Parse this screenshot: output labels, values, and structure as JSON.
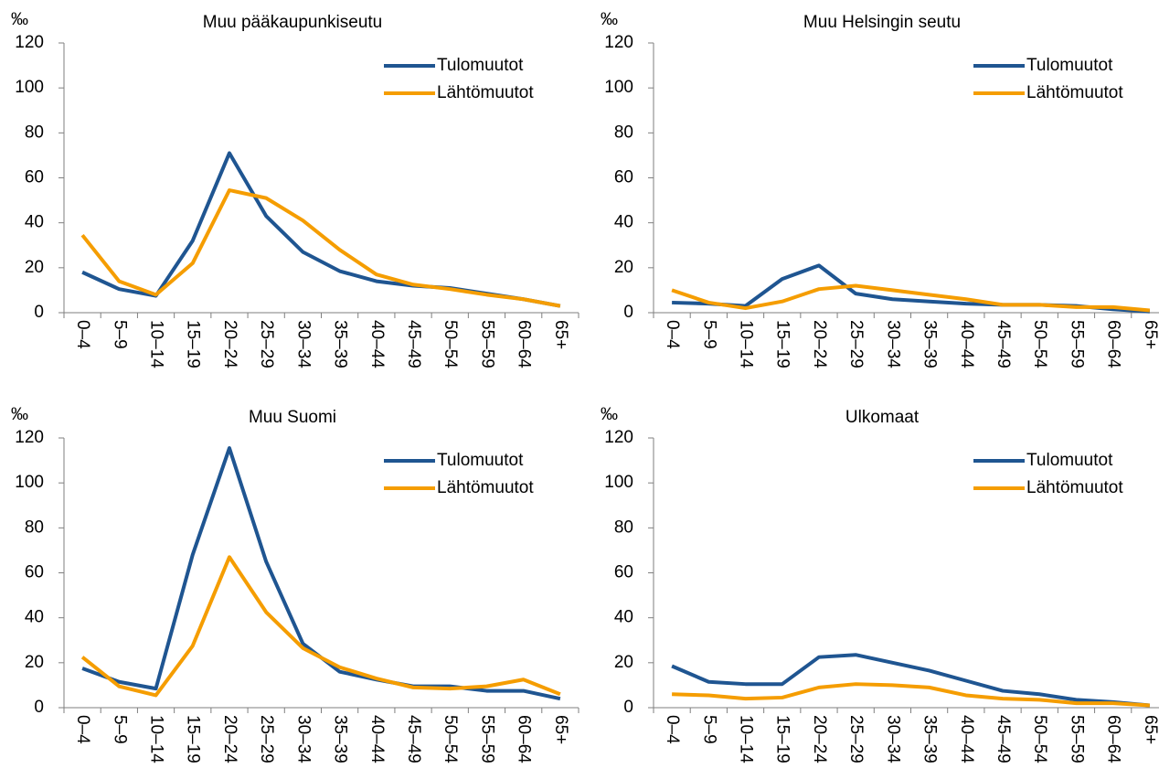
{
  "chart_data": [
    {
      "type": "line",
      "title": "Muu pääkaupunkiseutu",
      "ylabel": "‰",
      "categories": [
        "0–4",
        "5–9",
        "10–14",
        "15–19",
        "20–24",
        "25–29",
        "30–34",
        "35–39",
        "40–44",
        "45–49",
        "50–54",
        "55–59",
        "60–64",
        "65+"
      ],
      "series": [
        {
          "name": "Tulomuutot",
          "color": "#1f5591",
          "values": [
            18,
            10.5,
            7.5,
            32,
            71,
            43,
            27,
            18.5,
            14,
            12,
            11,
            8.5,
            6,
            3
          ]
        },
        {
          "name": "Lähtömuutot",
          "color": "#f59d00",
          "values": [
            34.5,
            14,
            8,
            22,
            54.5,
            51,
            41,
            28,
            17,
            12.5,
            10.5,
            8,
            6,
            3
          ]
        }
      ],
      "ylim": [
        0,
        120
      ],
      "yticks": [
        0,
        20,
        40,
        60,
        80,
        100,
        120
      ],
      "grid": false,
      "legend": "upper right"
    },
    {
      "type": "line",
      "title": "Muu Helsingin seutu",
      "ylabel": "‰",
      "categories": [
        "0–4",
        "5–9",
        "10–14",
        "15–19",
        "20–24",
        "25–29",
        "30–34",
        "35–39",
        "40–44",
        "45–49",
        "50–54",
        "55–59",
        "60–64",
        "65+"
      ],
      "series": [
        {
          "name": "Tulomuutot",
          "color": "#1f5591",
          "values": [
            4.5,
            4,
            3,
            15,
            21,
            8.5,
            6,
            5,
            4,
            3.5,
            3.5,
            3,
            1.5,
            0.5
          ]
        },
        {
          "name": "Lähtömuutot",
          "color": "#f59d00",
          "values": [
            10,
            4.5,
            2,
            5,
            10.5,
            12,
            10,
            8,
            6,
            3.5,
            3.5,
            2.5,
            2.5,
            1
          ]
        }
      ],
      "ylim": [
        0,
        120
      ],
      "yticks": [
        0,
        20,
        40,
        60,
        80,
        100,
        120
      ],
      "grid": false,
      "legend": "upper right"
    },
    {
      "type": "line",
      "title": "Muu Suomi",
      "ylabel": "‰",
      "categories": [
        "0–4",
        "5–9",
        "10–14",
        "15–19",
        "20–24",
        "25–29",
        "30–34",
        "35–39",
        "40–44",
        "45–49",
        "50–54",
        "55–59",
        "60–64",
        "65+"
      ],
      "series": [
        {
          "name": "Tulomuutot",
          "color": "#1f5591",
          "values": [
            17.5,
            11.5,
            8.5,
            68,
            115.5,
            65,
            28.5,
            16,
            12.5,
            9.5,
            9.5,
            7.5,
            7.5,
            4
          ]
        },
        {
          "name": "Lähtömuutot",
          "color": "#f59d00",
          "values": [
            22.5,
            9.5,
            5.5,
            27.5,
            67,
            42.5,
            26.5,
            18,
            13,
            9,
            8.5,
            9.5,
            12.5,
            6
          ]
        }
      ],
      "ylim": [
        0,
        120
      ],
      "yticks": [
        0,
        20,
        40,
        60,
        80,
        100,
        120
      ],
      "grid": false,
      "legend": "upper right"
    },
    {
      "type": "line",
      "title": "Ulkomaat",
      "ylabel": "‰",
      "categories": [
        "0–4",
        "5–9",
        "10–14",
        "15–19",
        "20–24",
        "25–29",
        "30–34",
        "35–39",
        "40–44",
        "45–49",
        "50–54",
        "55–59",
        "60–64",
        "65+"
      ],
      "series": [
        {
          "name": "Tulomuutot",
          "color": "#1f5591",
          "values": [
            18.5,
            11.5,
            10.5,
            10.5,
            22.5,
            23.5,
            20,
            16.5,
            12,
            7.5,
            6,
            3.5,
            2.5,
            1
          ]
        },
        {
          "name": "Lähtömuutot",
          "color": "#f59d00",
          "values": [
            6,
            5.5,
            4,
            4.5,
            9,
            10.5,
            10,
            9,
            5.5,
            4,
            3.5,
            2,
            2,
            1
          ]
        }
      ],
      "ylim": [
        0,
        120
      ],
      "yticks": [
        0,
        20,
        40,
        60,
        80,
        100,
        120
      ],
      "grid": false,
      "legend": "upper right"
    }
  ]
}
